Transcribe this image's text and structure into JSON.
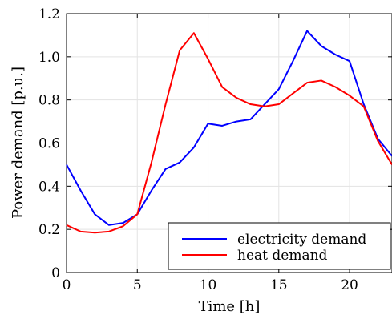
{
  "chart_data": {
    "type": "line",
    "xlabel": "Time [h]",
    "ylabel": "Power demand [p.u.]",
    "xlim": [
      0,
      23
    ],
    "ylim": [
      0,
      1.2
    ],
    "xticks": [
      0,
      5,
      10,
      15,
      20
    ],
    "xtick_labels": [
      "0",
      "5",
      "10",
      "15",
      "20"
    ],
    "yticks": [
      0,
      0.2,
      0.4,
      0.6,
      0.8,
      1.0,
      1.2
    ],
    "ytick_labels": [
      "0",
      "0.2",
      "0.4",
      "0.6",
      "0.8",
      "1.0",
      "1.2"
    ],
    "grid": true,
    "legend_position": "bottom-right",
    "x": [
      0,
      1,
      2,
      3,
      4,
      5,
      6,
      7,
      8,
      9,
      10,
      11,
      12,
      13,
      14,
      15,
      16,
      17,
      18,
      19,
      20,
      21,
      22,
      23
    ],
    "series": [
      {
        "name": "electricity demand",
        "color": "#0000ff",
        "values": [
          0.5,
          0.38,
          0.27,
          0.22,
          0.23,
          0.27,
          0.38,
          0.48,
          0.51,
          0.58,
          0.69,
          0.68,
          0.7,
          0.71,
          0.78,
          0.85,
          0.98,
          1.12,
          1.05,
          1.01,
          0.98,
          0.78,
          0.62,
          0.54
        ]
      },
      {
        "name": "heat demand",
        "color": "#ff0000",
        "values": [
          0.22,
          0.19,
          0.185,
          0.19,
          0.215,
          0.27,
          0.51,
          0.78,
          1.03,
          1.11,
          0.99,
          0.86,
          0.81,
          0.78,
          0.77,
          0.78,
          0.83,
          0.88,
          0.89,
          0.86,
          0.82,
          0.77,
          0.61,
          0.5
        ]
      }
    ]
  }
}
